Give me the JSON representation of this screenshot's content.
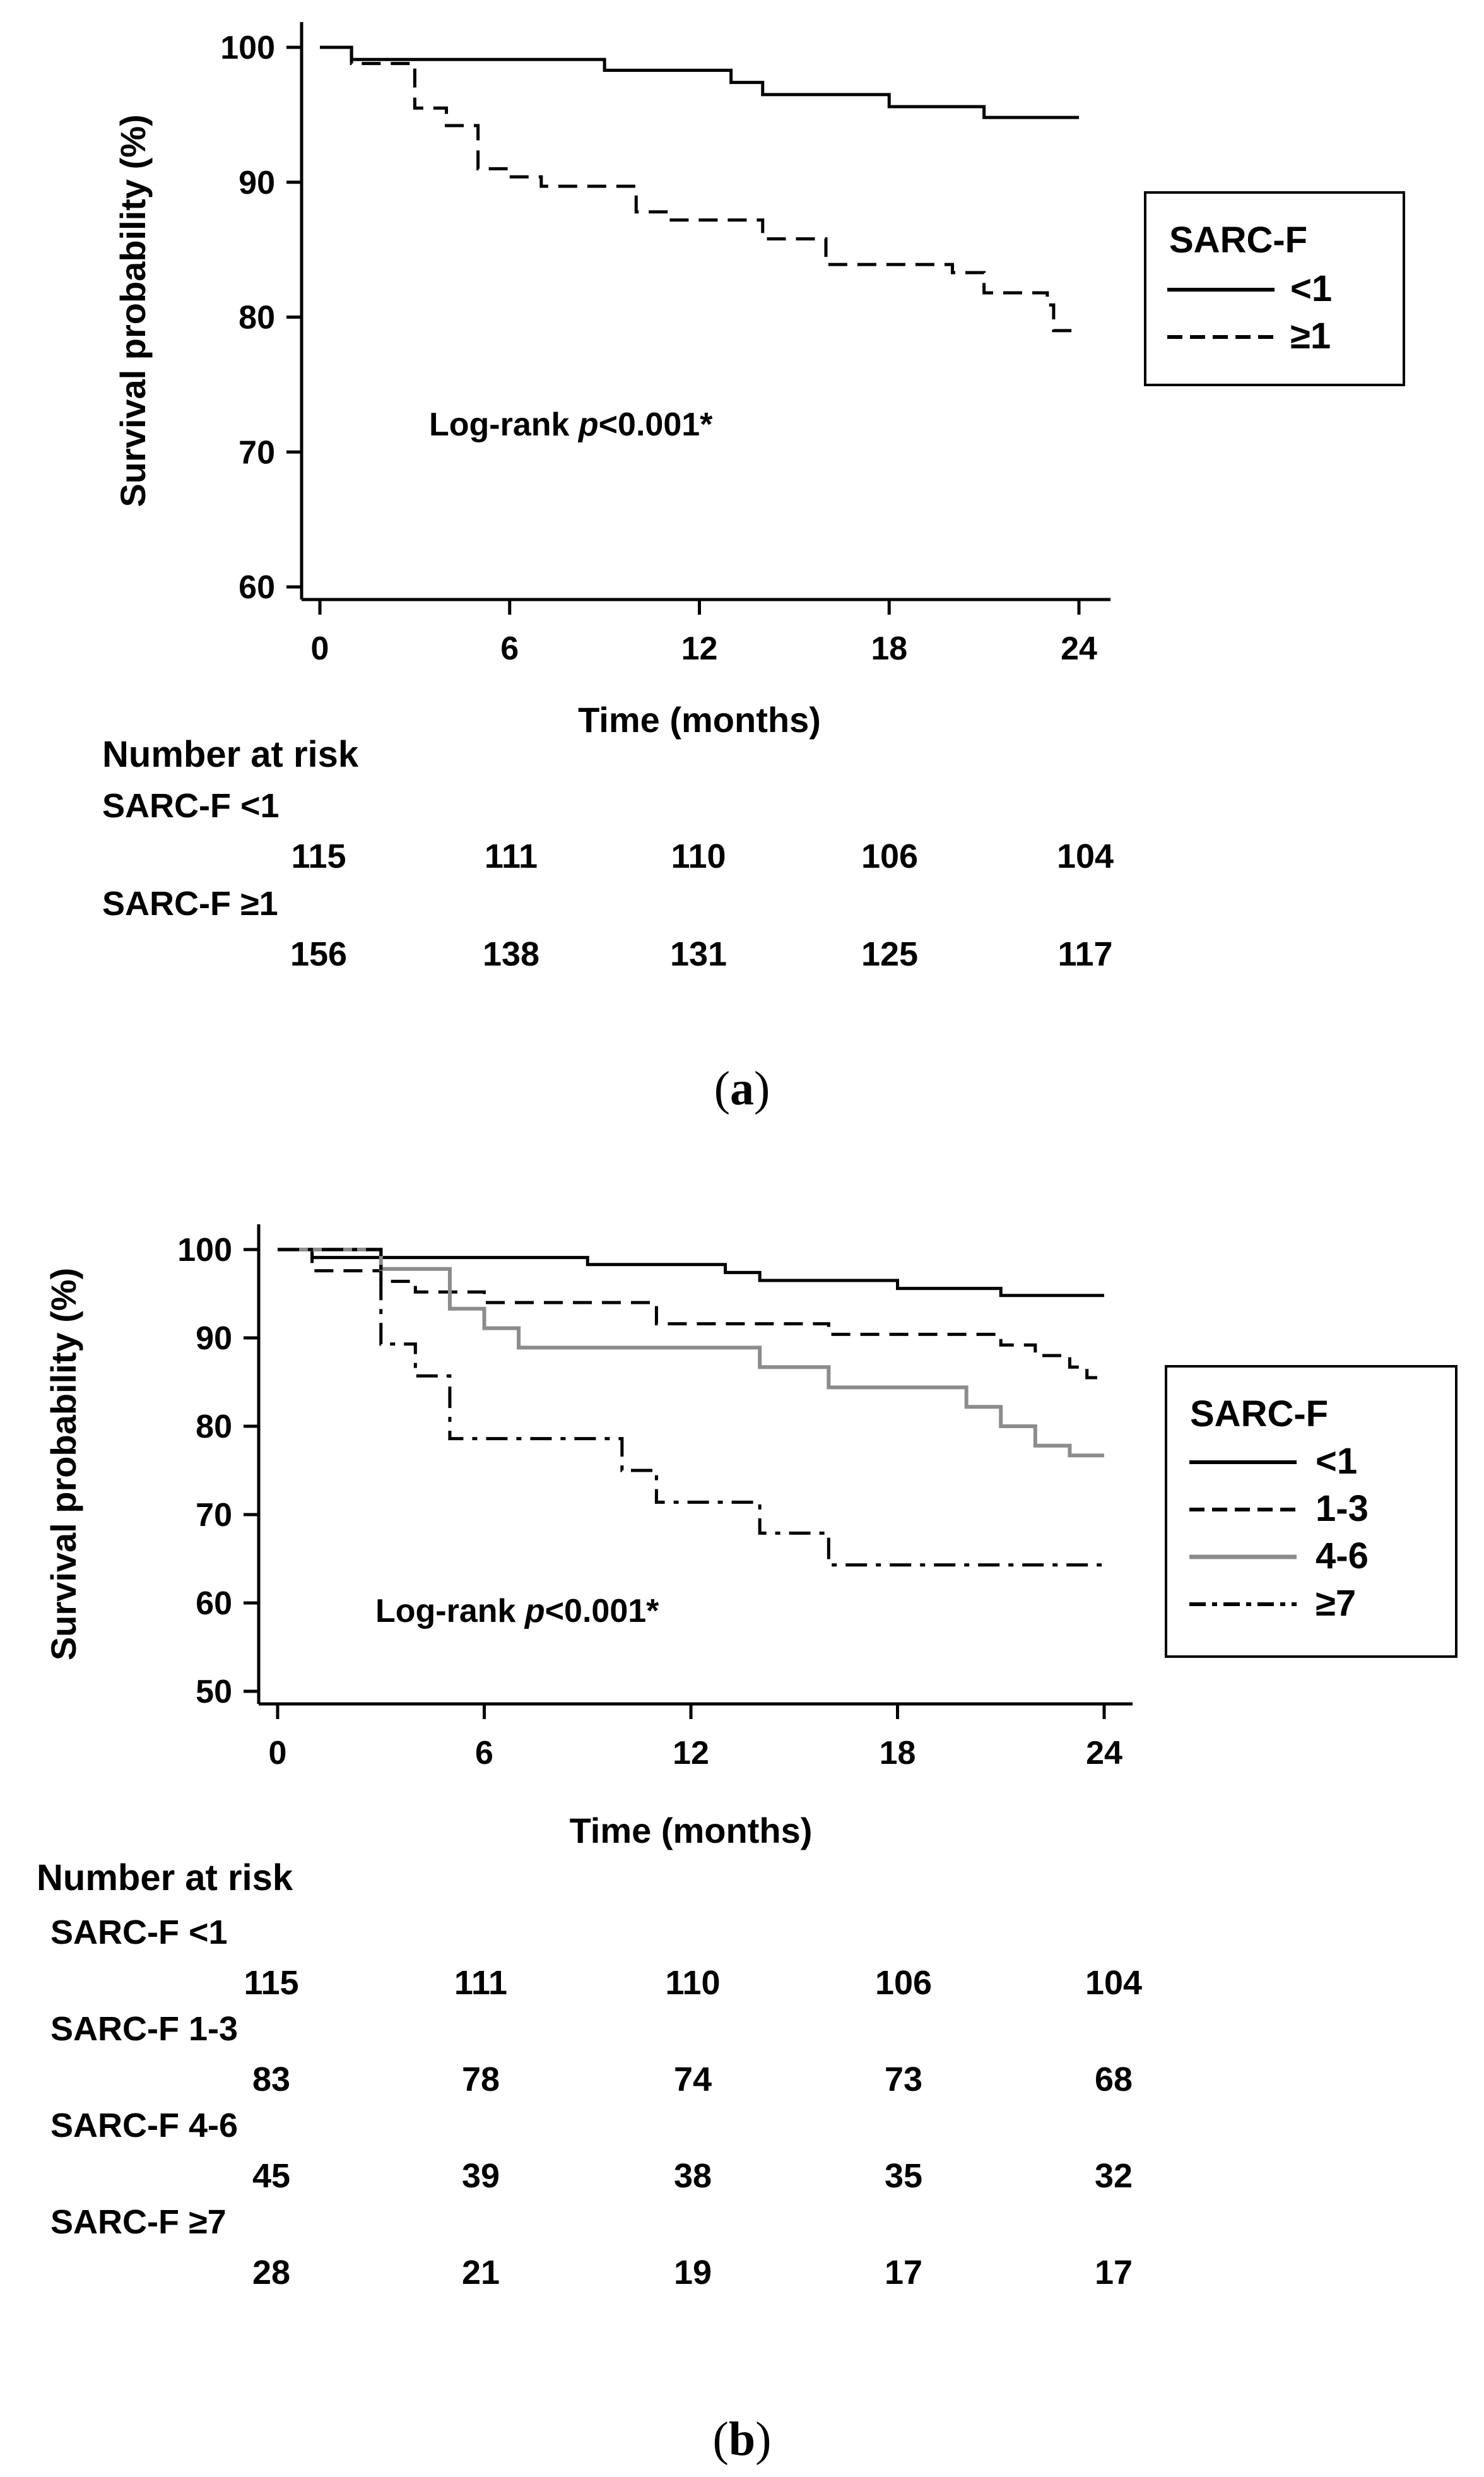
{
  "chart_data": [
    {
      "id": "a",
      "type": "line",
      "subtype": "kaplan-meier",
      "caption_open": "(",
      "caption_letter": "a",
      "caption_close": ")",
      "xlabel": "Time (months)",
      "ylabel": "Survival probability (%)",
      "xlim": [
        0,
        24
      ],
      "ylim": [
        60,
        100
      ],
      "xticks": [
        0,
        6,
        12,
        18,
        24
      ],
      "yticks": [
        60,
        70,
        80,
        90,
        100
      ],
      "annotation": {
        "prefix": "Log-rank ",
        "p": "p",
        "suffix": "<0.001*"
      },
      "legend_title": "SARC-F",
      "legend_position": "right",
      "series": [
        {
          "name": "<1",
          "style": "solid",
          "color": "#000000",
          "steps": [
            [
              0,
              100
            ],
            [
              1,
              99.1
            ],
            [
              9,
              98.3
            ],
            [
              13,
              97.4
            ],
            [
              14,
              96.5
            ],
            [
              18,
              95.6
            ],
            [
              21,
              94.8
            ],
            [
              24,
              94.8
            ]
          ]
        },
        {
          "name": "≥1",
          "style": "dashed",
          "color": "#000000",
          "steps": [
            [
              0,
              100
            ],
            [
              1,
              98.8
            ],
            [
              3,
              95.5
            ],
            [
              4,
              94.2
            ],
            [
              5,
              91.0
            ],
            [
              6,
              90.4
            ],
            [
              7,
              89.7
            ],
            [
              10,
              87.8
            ],
            [
              11,
              87.2
            ],
            [
              14,
              85.8
            ],
            [
              16,
              83.9
            ],
            [
              20,
              83.3
            ],
            [
              21,
              81.8
            ],
            [
              23,
              80.9
            ],
            [
              23.2,
              79.0
            ],
            [
              24,
              79.0
            ]
          ]
        }
      ],
      "risk_table": {
        "title": "Number at risk",
        "rows": [
          {
            "label": "SARC-F <1",
            "values": [
              115,
              111,
              110,
              106,
              104
            ]
          },
          {
            "label": "SARC-F ≥1",
            "values": [
              156,
              138,
              131,
              125,
              117
            ]
          }
        ]
      }
    },
    {
      "id": "b",
      "type": "line",
      "subtype": "kaplan-meier",
      "caption_open": "(",
      "caption_letter": "b",
      "caption_close": ")",
      "xlabel": "Time (months)",
      "ylabel": "Survival probability (%)",
      "xlim": [
        0,
        24
      ],
      "ylim": [
        50,
        100
      ],
      "xticks": [
        0,
        6,
        12,
        18,
        24
      ],
      "yticks": [
        50,
        60,
        70,
        80,
        90,
        100
      ],
      "annotation": {
        "prefix": "Log-rank ",
        "p": "p",
        "suffix": "<0.001*"
      },
      "legend_title": "SARC-F",
      "legend_position": "right",
      "series": [
        {
          "name": "<1",
          "style": "solid",
          "color": "#000000",
          "steps": [
            [
              0,
              100
            ],
            [
              1,
              99.1
            ],
            [
              9,
              98.3
            ],
            [
              13,
              97.4
            ],
            [
              14,
              96.5
            ],
            [
              18,
              95.6
            ],
            [
              21,
              94.8
            ],
            [
              24,
              94.8
            ]
          ]
        },
        {
          "name": "1-3",
          "style": "dashed",
          "color": "#000000",
          "steps": [
            [
              0,
              100
            ],
            [
              1,
              97.6
            ],
            [
              3,
              96.4
            ],
            [
              4,
              95.2
            ],
            [
              6,
              94.0
            ],
            [
              11,
              91.6
            ],
            [
              16,
              90.4
            ],
            [
              21,
              89.2
            ],
            [
              22,
              88.0
            ],
            [
              23,
              86.7
            ],
            [
              23.5,
              85.5
            ],
            [
              24,
              85.5
            ]
          ]
        },
        {
          "name": "4-6",
          "style": "solid",
          "color": "#8c8c8c",
          "steps": [
            [
              0,
              100
            ],
            [
              3,
              97.8
            ],
            [
              5,
              93.3
            ],
            [
              6,
              91.1
            ],
            [
              7,
              88.9
            ],
            [
              14,
              86.7
            ],
            [
              16,
              84.4
            ],
            [
              20,
              82.2
            ],
            [
              21,
              80.0
            ],
            [
              22,
              77.8
            ],
            [
              23,
              76.7
            ],
            [
              24,
              76.7
            ]
          ]
        },
        {
          "name": "≥7",
          "style": "dashdot",
          "color": "#000000",
          "steps": [
            [
              0,
              100
            ],
            [
              3,
              89.3
            ],
            [
              4,
              85.7
            ],
            [
              5,
              78.6
            ],
            [
              10,
              75.0
            ],
            [
              11,
              71.4
            ],
            [
              14,
              67.9
            ],
            [
              16,
              64.3
            ],
            [
              24,
              64.3
            ]
          ]
        }
      ],
      "risk_table": {
        "title": "Number at risk",
        "rows": [
          {
            "label": "SARC-F <1",
            "values": [
              115,
              111,
              110,
              106,
              104
            ]
          },
          {
            "label": "SARC-F 1-3",
            "values": [
              83,
              78,
              74,
              73,
              68
            ]
          },
          {
            "label": "SARC-F 4-6",
            "values": [
              45,
              39,
              38,
              35,
              32
            ]
          },
          {
            "label": "SARC-F ≥7",
            "values": [
              28,
              21,
              19,
              17,
              17
            ]
          }
        ]
      }
    }
  ]
}
